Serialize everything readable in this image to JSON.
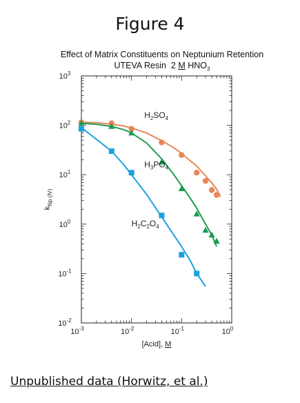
{
  "figure_title": "Figure 4",
  "footer": "Unpublished data (Horwitz, et al.)",
  "chart_data": {
    "type": "scatter",
    "title": "Effect of Matrix Constituents on Neptunium Retention",
    "subtitle": "UTEVA Resin  2 M HNO3",
    "xlabel": "[Acid], M",
    "ylabel": "kNp (IV)",
    "xscale": "log",
    "yscale": "log",
    "xlim": [
      0.001,
      1
    ],
    "ylim": [
      0.01,
      1000
    ],
    "x_tick_labels": [
      {
        "base": "10",
        "exp": "-3"
      },
      {
        "base": "10",
        "exp": "-2"
      },
      {
        "base": "10",
        "exp": "-1"
      },
      {
        "base": "10",
        "exp": "0"
      }
    ],
    "y_tick_labels": [
      {
        "base": "10",
        "exp": "-2"
      },
      {
        "base": "10",
        "exp": "-1"
      },
      {
        "base": "10",
        "exp": "0"
      },
      {
        "base": "10",
        "exp": "1"
      },
      {
        "base": "10",
        "exp": "2"
      },
      {
        "base": "10",
        "exp": "3"
      }
    ],
    "series": [
      {
        "name": "H2SO4",
        "label_main": "H",
        "label_sub1": "2",
        "label_mid": "SO",
        "label_sub2": "4",
        "label_end": "",
        "color": "#e8875a",
        "marker": "circle",
        "x": [
          0.001,
          0.004,
          0.01,
          0.04,
          0.1,
          0.2,
          0.3,
          0.4,
          0.5
        ],
        "y": [
          115,
          110,
          85,
          45,
          25,
          11,
          7.5,
          4.9,
          3.9
        ],
        "fit_x": [
          0.001,
          0.002,
          0.004,
          0.007,
          0.01,
          0.02,
          0.04,
          0.07,
          0.1,
          0.15,
          0.2,
          0.3,
          0.4,
          0.5,
          0.6
        ],
        "fit_y": [
          115,
          113,
          105,
          97,
          88,
          70,
          49,
          35,
          27,
          19,
          15,
          9.5,
          6.8,
          5.1,
          3.6
        ]
      },
      {
        "name": "H3PO4",
        "label_main": "H",
        "label_sub1": "3",
        "label_mid": "PO",
        "label_sub2": "4",
        "label_end": "",
        "color": "#1e9a4f",
        "marker": "triangle",
        "x": [
          0.001,
          0.004,
          0.01,
          0.04,
          0.1,
          0.2,
          0.3,
          0.4,
          0.5
        ],
        "y": [
          110,
          95,
          70,
          18,
          5.2,
          1.6,
          0.75,
          0.6,
          0.45
        ],
        "fit_x": [
          0.001,
          0.002,
          0.004,
          0.007,
          0.01,
          0.02,
          0.04,
          0.07,
          0.1,
          0.15,
          0.2,
          0.3,
          0.4,
          0.5
        ],
        "fit_y": [
          110,
          105,
          95,
          82,
          70,
          44,
          21,
          10,
          6,
          3.3,
          2.1,
          1.0,
          0.6,
          0.35
        ]
      },
      {
        "name": "H2C2O4",
        "label_main": "H",
        "label_sub1": "2",
        "label_mid": "C",
        "label_sub2": "2",
        "label_end": "O",
        "label_sub3": "4",
        "color": "#1aa0e0",
        "marker": "square",
        "x": [
          0.001,
          0.004,
          0.01,
          0.04,
          0.1,
          0.2
        ],
        "y": [
          85,
          30,
          11,
          1.5,
          0.24,
          0.1
        ],
        "fit_x": [
          0.001,
          0.002,
          0.004,
          0.007,
          0.01,
          0.02,
          0.04,
          0.07,
          0.1,
          0.15,
          0.2,
          0.3
        ],
        "fit_y": [
          90,
          52,
          30,
          16,
          10,
          4,
          1.4,
          0.6,
          0.35,
          0.18,
          0.1,
          0.055
        ]
      }
    ]
  }
}
